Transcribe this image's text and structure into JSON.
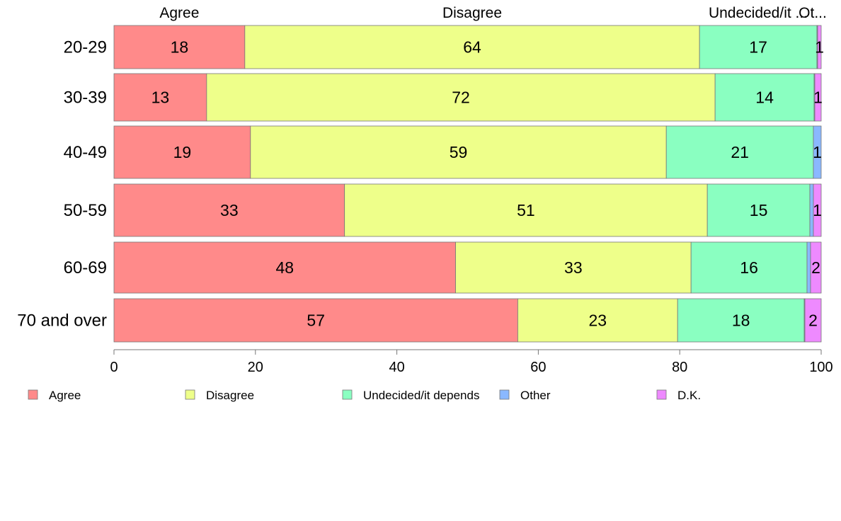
{
  "colors": {
    "Agree": "#FF8A8A",
    "Disagree": "#EEFF8A",
    "Undecided/it depends": "#8AFFC1",
    "Other": "#8AB8FF",
    "D.K.": "#EE8AFF"
  },
  "top_labels": [
    "Agree",
    "Disagree",
    "Undecided/it ...",
    "Ot..."
  ],
  "chart_data": {
    "type": "bar",
    "orientation": "horizontal",
    "stacked": true,
    "categories": [
      "20-29",
      "30-39",
      "40-49",
      "50-59",
      "60-69",
      "70 and over"
    ],
    "series": [
      {
        "name": "Agree",
        "values": [
          18.5,
          13.1,
          19.3,
          32.6,
          48.3,
          57.1
        ],
        "labels": [
          "18",
          "13",
          "19",
          "33",
          "48",
          "57"
        ]
      },
      {
        "name": "Disagree",
        "values": [
          64.3,
          71.9,
          58.8,
          51.3,
          33.3,
          22.6
        ],
        "labels": [
          "64",
          "72",
          "59",
          "51",
          "33",
          "23"
        ]
      },
      {
        "name": "Undecided/it depends",
        "values": [
          16.6,
          14.0,
          20.8,
          14.5,
          16.4,
          17.9
        ],
        "labels": [
          "17",
          "14",
          "21",
          "15",
          "16",
          "18"
        ]
      },
      {
        "name": "Other",
        "values": [
          0.1,
          0.1,
          1.1,
          0.5,
          0.5,
          0.1
        ],
        "labels": [
          "",
          "",
          "1",
          "",
          "",
          ""
        ]
      },
      {
        "name": "D.K.",
        "values": [
          0.5,
          0.9,
          0.0,
          1.1,
          1.5,
          2.3
        ],
        "labels": [
          "1",
          "1",
          "",
          "1",
          "2",
          "2"
        ]
      }
    ],
    "xlim": [
      0,
      100
    ],
    "xticks": [
      "0",
      "20",
      "40",
      "60",
      "80",
      "100"
    ],
    "legend": [
      "Agree",
      "Disagree",
      "Undecided/it depends",
      "Other",
      "D.K."
    ],
    "legend_position": "bottom",
    "grid": false
  }
}
